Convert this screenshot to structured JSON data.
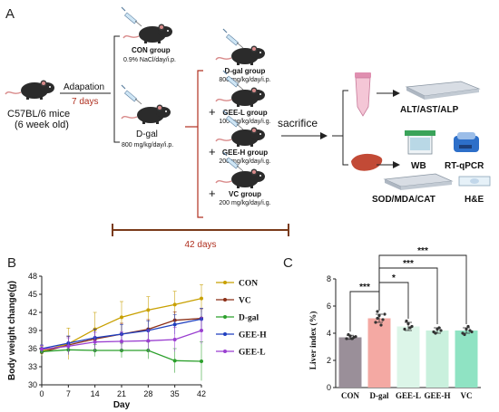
{
  "panel_a": {
    "letter": "A",
    "mouse_label": "C57BL/6 mice",
    "mouse_age": "(6 week old)",
    "adaptation_label": "Adapation",
    "adaptation_days": "7 days",
    "con_group_title": "CON group",
    "con_group_dose": "0.9% NaCl/day/i.p.",
    "dgal_model_title": "D-gal",
    "dgal_model_dose": "800 mg/kg/day/i.p.",
    "groups": [
      {
        "title": "D-gal group",
        "dose": "800 mg/kg/day/i.p.",
        "plus": ""
      },
      {
        "title": "GEE-L group",
        "dose": "100 mg/kg/day/i.g.",
        "plus": "+"
      },
      {
        "title": "GEE-H group",
        "dose": "200 mg/kg/day/i.g.",
        "plus": "+"
      },
      {
        "title": "VC group",
        "dose": "200 mg/kg/day/i.g.",
        "plus": "+"
      }
    ],
    "sacrifice_label": "sacrifice",
    "serum_assay": "ALT/AST/ALP",
    "wb_label": "WB",
    "qpcr_label": "RT-qPCR",
    "liver_assay": "SOD/MDA/CAT",
    "he_label": "H&E",
    "timeline_label": "42 days",
    "colors": {
      "accent_red": "#b03020",
      "timeline": "#7a3a1a"
    }
  },
  "panel_b": {
    "letter": "B",
    "chart_data": {
      "type": "line",
      "x": [
        0,
        7,
        14,
        21,
        28,
        35,
        42
      ],
      "xlabel": "Day",
      "ylabel": "Body weight change(g)",
      "xlim": [
        0,
        42
      ],
      "ylim": [
        30,
        48
      ],
      "x_ticks": [
        "0",
        "7",
        "14",
        "21",
        "28",
        "35",
        "42"
      ],
      "y_ticks": [
        "30",
        "33",
        "36",
        "39",
        "42",
        "45",
        "48"
      ],
      "legend_position": "right",
      "grid": false,
      "series": [
        {
          "name": "CON",
          "color": "#c8a000",
          "values": [
            35.6,
            36.8,
            39.2,
            41.2,
            42.4,
            43.3,
            44.3
          ],
          "errors": [
            0.8,
            2.6,
            2.8,
            2.6,
            2.2,
            2.2,
            2.3
          ]
        },
        {
          "name": "VC",
          "color": "#8b2e16",
          "values": [
            35.4,
            36.6,
            37.6,
            38.4,
            39.2,
            40.7,
            41.0
          ],
          "errors": [
            0.6,
            1.4,
            1.6,
            1.8,
            1.6,
            1.4,
            1.6
          ]
        },
        {
          "name": "D-gal",
          "color": "#2ca02c",
          "values": [
            35.5,
            35.8,
            35.7,
            35.7,
            35.7,
            34.0,
            33.9
          ],
          "errors": [
            0.6,
            0.8,
            1.0,
            1.2,
            1.4,
            2.0,
            3.2
          ]
        },
        {
          "name": "GEE-H",
          "color": "#1f3fbf",
          "values": [
            36.0,
            36.9,
            37.8,
            38.4,
            39.0,
            40.0,
            40.9
          ],
          "errors": [
            0.6,
            1.2,
            1.4,
            1.6,
            1.6,
            1.6,
            1.8
          ]
        },
        {
          "name": "GEE-L",
          "color": "#9a3fd0",
          "values": [
            35.9,
            36.4,
            37.1,
            37.2,
            37.3,
            37.5,
            39.0
          ],
          "errors": [
            0.6,
            1.4,
            1.6,
            1.6,
            1.8,
            2.0,
            2.2
          ]
        }
      ]
    }
  },
  "panel_c": {
    "letter": "C",
    "chart_data": {
      "type": "bar",
      "categories": [
        "CON",
        "D-gal",
        "GEE-L",
        "GEE-H",
        "VC"
      ],
      "values": [
        3.7,
        5.1,
        4.5,
        4.2,
        4.2
      ],
      "errors": [
        0.15,
        0.3,
        0.3,
        0.2,
        0.2
      ],
      "colors": [
        "#9a8f99",
        "#f4a9a3",
        "#dcf5e8",
        "#c9f0dd",
        "#8fe3c3"
      ],
      "ylabel": "Liver index (%)",
      "ylim": [
        0,
        8
      ],
      "y_ticks": [
        "0",
        "2",
        "4",
        "6",
        "8"
      ],
      "points": [
        [
          3.6,
          3.8,
          3.7,
          3.9,
          3.6,
          3.75
        ],
        [
          4.8,
          5.3,
          5.0,
          5.6,
          4.6,
          5.4,
          5.1
        ],
        [
          4.3,
          4.7,
          4.5,
          4.9,
          4.4
        ],
        [
          4.1,
          4.3,
          4.2,
          4.0,
          4.4
        ],
        [
          4.0,
          4.3,
          4.2,
          3.9,
          4.5,
          4.1
        ]
      ],
      "significance": [
        {
          "from": "CON",
          "to": "D-gal",
          "label": "***"
        },
        {
          "from": "D-gal",
          "to": "GEE-L",
          "label": "*"
        },
        {
          "from": "D-gal",
          "to": "GEE-H",
          "label": "***"
        },
        {
          "from": "D-gal",
          "to": "VC",
          "label": "***"
        }
      ]
    }
  }
}
